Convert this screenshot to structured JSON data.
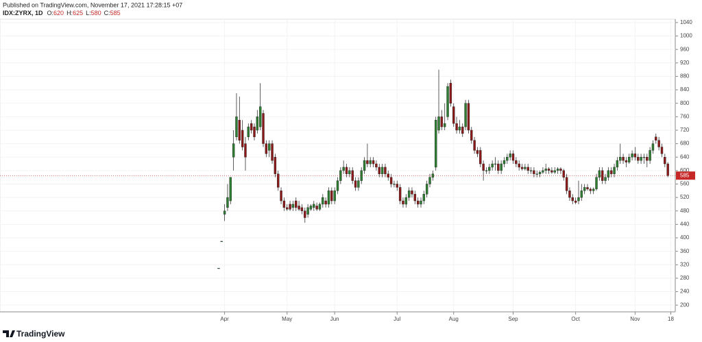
{
  "header": {
    "published": "Published on TradingView.com, November 17, 2021 17:28:15 +07",
    "symbol": "IDX:ZYRX, 1D",
    "fields": [
      "O:",
      "H:",
      "L:",
      "C:"
    ]
  },
  "footer": {
    "brand": "TradingView"
  },
  "chart_data": {
    "type": "candlestick",
    "ohlc": [
      [
        310,
        310,
        310,
        310
      ],
      [
        390,
        390,
        390,
        390
      ],
      [
        470,
        500,
        450,
        480
      ],
      [
        490,
        560,
        480,
        520
      ],
      [
        510,
        580,
        500,
        580
      ],
      [
        640,
        720,
        600,
        680
      ],
      [
        700,
        830,
        690,
        760
      ],
      [
        750,
        820,
        680,
        690
      ],
      [
        720,
        750,
        660,
        670
      ],
      [
        680,
        700,
        600,
        640
      ],
      [
        700,
        740,
        690,
        730
      ],
      [
        740,
        750,
        710,
        720
      ],
      [
        730,
        740,
        690,
        700
      ],
      [
        720,
        780,
        710,
        760
      ],
      [
        730,
        860,
        720,
        790
      ],
      [
        770,
        780,
        670,
        680
      ],
      [
        680,
        690,
        640,
        650
      ],
      [
        660,
        690,
        640,
        680
      ],
      [
        680,
        690,
        620,
        630
      ],
      [
        640,
        650,
        580,
        590
      ],
      [
        590,
        600,
        540,
        550
      ],
      [
        540,
        550,
        500,
        510
      ],
      [
        510,
        520,
        480,
        490
      ],
      [
        490,
        500,
        480,
        485
      ],
      [
        500,
        510,
        480,
        485
      ],
      [
        490,
        510,
        480,
        500
      ],
      [
        510,
        520,
        480,
        490
      ],
      [
        495,
        510,
        480,
        485
      ],
      [
        490,
        500,
        470,
        480
      ],
      [
        480,
        490,
        445,
        460
      ],
      [
        470,
        500,
        460,
        490
      ],
      [
        485,
        500,
        480,
        495
      ],
      [
        490,
        510,
        480,
        500
      ],
      [
        495,
        505,
        480,
        485
      ],
      [
        485,
        505,
        480,
        500
      ],
      [
        500,
        530,
        490,
        520
      ],
      [
        510,
        520,
        490,
        500
      ],
      [
        500,
        550,
        490,
        540
      ],
      [
        540,
        550,
        500,
        510
      ],
      [
        510,
        550,
        500,
        540
      ],
      [
        540,
        580,
        530,
        570
      ],
      [
        570,
        610,
        560,
        600
      ],
      [
        600,
        630,
        590,
        610
      ],
      [
        610,
        620,
        580,
        590
      ],
      [
        590,
        610,
        580,
        600
      ],
      [
        600,
        610,
        560,
        570
      ],
      [
        570,
        580,
        540,
        550
      ],
      [
        550,
        580,
        540,
        570
      ],
      [
        570,
        610,
        560,
        600
      ],
      [
        600,
        640,
        590,
        630
      ],
      [
        630,
        680,
        610,
        620
      ],
      [
        620,
        640,
        610,
        630
      ],
      [
        630,
        640,
        610,
        620
      ],
      [
        620,
        630,
        600,
        610
      ],
      [
        610,
        620,
        580,
        590
      ],
      [
        590,
        620,
        580,
        610
      ],
      [
        610,
        620,
        580,
        590
      ],
      [
        590,
        600,
        570,
        580
      ],
      [
        580,
        590,
        550,
        560
      ],
      [
        560,
        570,
        550,
        560
      ],
      [
        560,
        570,
        540,
        550
      ],
      [
        550,
        560,
        500,
        510
      ],
      [
        510,
        520,
        490,
        500
      ],
      [
        500,
        530,
        490,
        520
      ],
      [
        520,
        550,
        510,
        540
      ],
      [
        540,
        550,
        520,
        530
      ],
      [
        530,
        540,
        500,
        510
      ],
      [
        510,
        520,
        490,
        500
      ],
      [
        500,
        520,
        490,
        510
      ],
      [
        510,
        540,
        500,
        530
      ],
      [
        530,
        570,
        520,
        560
      ],
      [
        560,
        590,
        550,
        580
      ],
      [
        580,
        600,
        570,
        590
      ],
      [
        610,
        760,
        600,
        750
      ],
      [
        720,
        900,
        710,
        760
      ],
      [
        760,
        780,
        720,
        730
      ],
      [
        730,
        800,
        720,
        740
      ],
      [
        760,
        860,
        750,
        850
      ],
      [
        860,
        870,
        790,
        800
      ],
      [
        790,
        800,
        730,
        740
      ],
      [
        740,
        760,
        710,
        720
      ],
      [
        720,
        750,
        710,
        730
      ],
      [
        730,
        740,
        700,
        710
      ],
      [
        730,
        810,
        720,
        800
      ],
      [
        800,
        810,
        710,
        720
      ],
      [
        720,
        730,
        680,
        690
      ],
      [
        690,
        700,
        650,
        660
      ],
      [
        660,
        670,
        640,
        650
      ],
      [
        660,
        670,
        610,
        620
      ],
      [
        620,
        630,
        570,
        600
      ],
      [
        600,
        610,
        590,
        600
      ],
      [
        600,
        620,
        590,
        610
      ],
      [
        610,
        630,
        600,
        620
      ],
      [
        620,
        640,
        600,
        620
      ],
      [
        620,
        630,
        590,
        600
      ],
      [
        600,
        630,
        590,
        620
      ],
      [
        620,
        640,
        610,
        630
      ],
      [
        630,
        650,
        620,
        640
      ],
      [
        640,
        660,
        630,
        650
      ],
      [
        650,
        660,
        620,
        630
      ],
      [
        630,
        640,
        610,
        620
      ],
      [
        620,
        630,
        600,
        610
      ],
      [
        610,
        620,
        600,
        605
      ],
      [
        605,
        620,
        600,
        610
      ],
      [
        610,
        620,
        590,
        600
      ],
      [
        600,
        610,
        590,
        600
      ],
      [
        600,
        610,
        580,
        590
      ],
      [
        590,
        600,
        580,
        590
      ],
      [
        590,
        600,
        580,
        595
      ],
      [
        595,
        610,
        590,
        600
      ],
      [
        600,
        620,
        590,
        605
      ],
      [
        605,
        610,
        590,
        600
      ],
      [
        600,
        610,
        590,
        595
      ],
      [
        595,
        610,
        590,
        600
      ],
      [
        600,
        610,
        590,
        605
      ],
      [
        605,
        610,
        590,
        600
      ],
      [
        600,
        605,
        570,
        580
      ],
      [
        580,
        590,
        530,
        540
      ],
      [
        540,
        550,
        510,
        520
      ],
      [
        520,
        530,
        500,
        510
      ],
      [
        510,
        520,
        500,
        505
      ],
      [
        510,
        570,
        500,
        520
      ],
      [
        520,
        560,
        510,
        540
      ],
      [
        540,
        560,
        530,
        550
      ],
      [
        550,
        560,
        540,
        545
      ],
      [
        545,
        550,
        530,
        540
      ],
      [
        540,
        550,
        530,
        545
      ],
      [
        545,
        590,
        540,
        580
      ],
      [
        580,
        610,
        570,
        600
      ],
      [
        600,
        610,
        560,
        570
      ],
      [
        570,
        590,
        560,
        580
      ],
      [
        580,
        610,
        570,
        600
      ],
      [
        600,
        610,
        580,
        590
      ],
      [
        590,
        620,
        580,
        610
      ],
      [
        610,
        640,
        600,
        630
      ],
      [
        630,
        680,
        620,
        640
      ],
      [
        640,
        650,
        620,
        630
      ],
      [
        630,
        640,
        610,
        625
      ],
      [
        625,
        650,
        620,
        640
      ],
      [
        640,
        660,
        630,
        650
      ],
      [
        650,
        670,
        630,
        640
      ],
      [
        640,
        650,
        620,
        630
      ],
      [
        630,
        650,
        620,
        640
      ],
      [
        640,
        650,
        620,
        640
      ],
      [
        640,
        650,
        610,
        630
      ],
      [
        630,
        670,
        620,
        660
      ],
      [
        660,
        690,
        650,
        680
      ],
      [
        700,
        710,
        680,
        690
      ],
      [
        690,
        700,
        660,
        670
      ],
      [
        670,
        680,
        640,
        650
      ],
      [
        640,
        650,
        610,
        620
      ],
      [
        620,
        625,
        580,
        585
      ]
    ],
    "up_color": "#2e7d32",
    "down_color": "#8b1a1a",
    "wick_color": "#333333",
    "last_color": "#c62828",
    "ylim": [
      180,
      1050
    ],
    "yticks": [
      200,
      240,
      280,
      320,
      360,
      400,
      440,
      480,
      520,
      560,
      600,
      640,
      680,
      720,
      760,
      800,
      840,
      880,
      920,
      960,
      1000,
      1040
    ],
    "xlim": [
      -73.5,
      153.5
    ],
    "xticks": [
      {
        "value": 2,
        "label": "Apr"
      },
      {
        "value": 23,
        "label": "May"
      },
      {
        "value": 39,
        "label": "Jun"
      },
      {
        "value": 60,
        "label": "Jul"
      },
      {
        "value": 79,
        "label": "Aug"
      },
      {
        "value": 99,
        "label": "Sep"
      },
      {
        "value": 120,
        "label": "Oct"
      },
      {
        "value": 140,
        "label": "Nov"
      },
      {
        "value": 152,
        "label": "18"
      }
    ],
    "grid": true
  }
}
